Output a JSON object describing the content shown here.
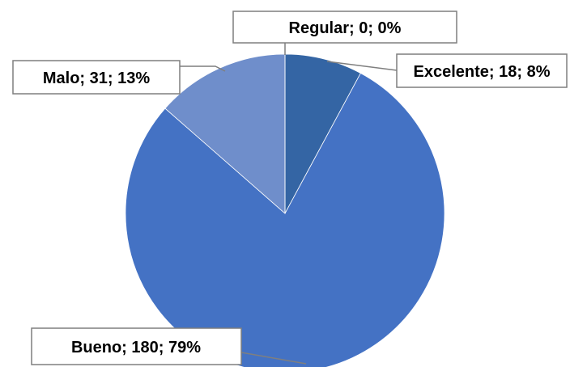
{
  "chart_data": {
    "type": "pie",
    "title": "",
    "legend": "none",
    "slices": [
      {
        "label": "Excelente",
        "value": 18,
        "percent": "8%",
        "color": "#3465a4",
        "display": "Excelente; 18; 8%"
      },
      {
        "label": "Bueno",
        "value": 180,
        "percent": "79%",
        "color": "#4472c4",
        "display": "Bueno; 180; 79%"
      },
      {
        "label": "Malo",
        "value": 31,
        "percent": "13%",
        "color": "#6f8ecb",
        "display": "Malo; 31; 13%"
      },
      {
        "label": "Regular",
        "value": 0,
        "percent": "0%",
        "color": "#8faadc",
        "display": "Regular; 0; 0%"
      }
    ]
  }
}
